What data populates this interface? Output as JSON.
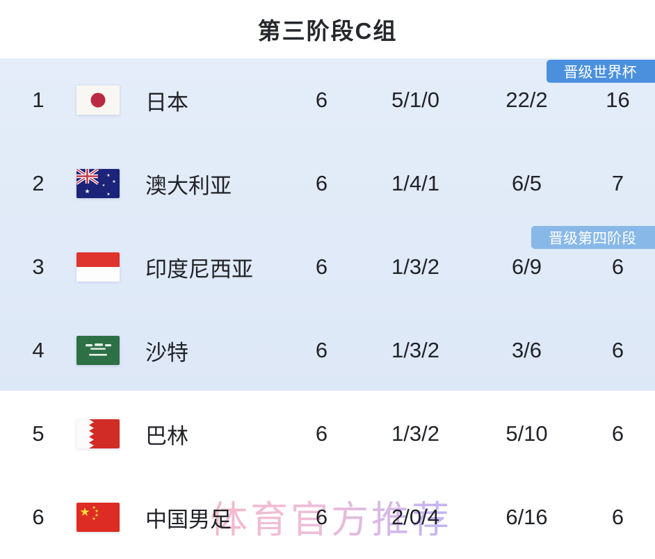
{
  "page": {
    "title": "第三阶段C组",
    "watermark": "体育官方推荐"
  },
  "badges": {
    "world_cup": "晋级世界杯",
    "fourth_stage": "晋级第四阶段"
  },
  "colors": {
    "badge_world_cup": "#4a90dd",
    "badge_fourth_stage": "#88b8e8",
    "section_background": "#dfe9f7",
    "text": "#202227"
  },
  "standings": {
    "rows": [
      {
        "rank": "1",
        "team": "日本",
        "flag": "japan-flag",
        "played": "6",
        "wdl": "5/1/0",
        "goals": "22/2",
        "points": "16"
      },
      {
        "rank": "2",
        "team": "澳大利亚",
        "flag": "australia-flag",
        "played": "6",
        "wdl": "1/4/1",
        "goals": "6/5",
        "points": "7"
      },
      {
        "rank": "3",
        "team": "印度尼西亚",
        "flag": "indonesia-flag",
        "played": "6",
        "wdl": "1/3/2",
        "goals": "6/9",
        "points": "6"
      },
      {
        "rank": "4",
        "team": "沙特",
        "flag": "saudi-arabia-flag",
        "played": "6",
        "wdl": "1/3/2",
        "goals": "3/6",
        "points": "6"
      },
      {
        "rank": "5",
        "team": "巴林",
        "flag": "bahrain-flag",
        "played": "6",
        "wdl": "1/3/2",
        "goals": "5/10",
        "points": "6"
      },
      {
        "rank": "6",
        "team": "中国男足",
        "flag": "china-flag",
        "played": "6",
        "wdl": "2/0/4",
        "goals": "6/16",
        "points": "6"
      }
    ]
  }
}
